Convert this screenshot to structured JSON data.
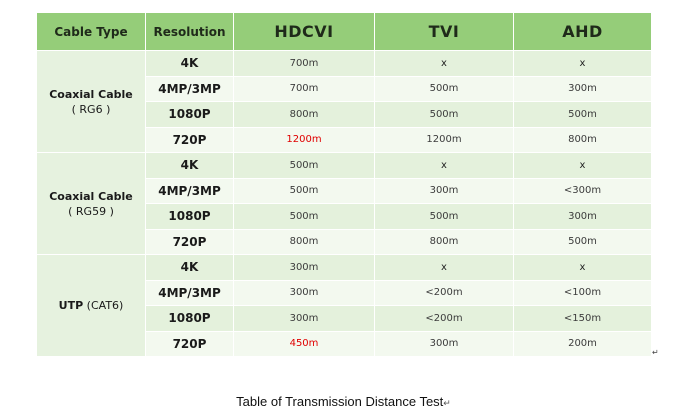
{
  "table": {
    "headers": [
      "Cable Type",
      "Resolution",
      "HDCVI",
      "TVI",
      "AHD"
    ],
    "groups": [
      {
        "name": "Coaxial Cable",
        "spec": "( RG6 )",
        "rows": [
          {
            "resolution": "4K",
            "hdcvi": "700m",
            "tvi": "x",
            "ahd": "x"
          },
          {
            "resolution": "4MP/3MP",
            "hdcvi": "700m",
            "tvi": "500m",
            "ahd": "300m"
          },
          {
            "resolution": "1080P",
            "hdcvi": "800m",
            "tvi": "500m",
            "ahd": "500m"
          },
          {
            "resolution": "720P",
            "hdcvi": "1200m",
            "tvi": "1200m",
            "ahd": "800m"
          }
        ]
      },
      {
        "name": "Coaxial Cable",
        "spec": "( RG59 )",
        "rows": [
          {
            "resolution": "4K",
            "hdcvi": "500m",
            "tvi": "x",
            "ahd": "x"
          },
          {
            "resolution": "4MP/3MP",
            "hdcvi": "500m",
            "tvi": "300m",
            "ahd": "<300m"
          },
          {
            "resolution": "1080P",
            "hdcvi": "500m",
            "tvi": "500m",
            "ahd": "300m"
          },
          {
            "resolution": "720P",
            "hdcvi": "800m",
            "tvi": "800m",
            "ahd": "500m"
          }
        ]
      },
      {
        "name": "UTP",
        "spec": "(CAT6)",
        "rows": [
          {
            "resolution": "4K",
            "hdcvi": "300m",
            "tvi": "x",
            "ahd": "x"
          },
          {
            "resolution": "4MP/3MP",
            "hdcvi": "300m",
            "tvi": "<200m",
            "ahd": "<100m"
          },
          {
            "resolution": "1080P",
            "hdcvi": "300m",
            "tvi": "<200m",
            "ahd": "<150m"
          },
          {
            "resolution": "720P",
            "hdcvi": "450m",
            "tvi": "300m",
            "ahd": "200m"
          }
        ]
      }
    ]
  },
  "caption": "Table of Transmission Distance Test",
  "caption_mark": "↵",
  "return_mark": "↵",
  "colors": {
    "header_bg": "#95cd79",
    "row_even_bg": "#e4f1dc",
    "row_odd_bg": "#f3f9ef",
    "highlight_text": "#e00000"
  }
}
